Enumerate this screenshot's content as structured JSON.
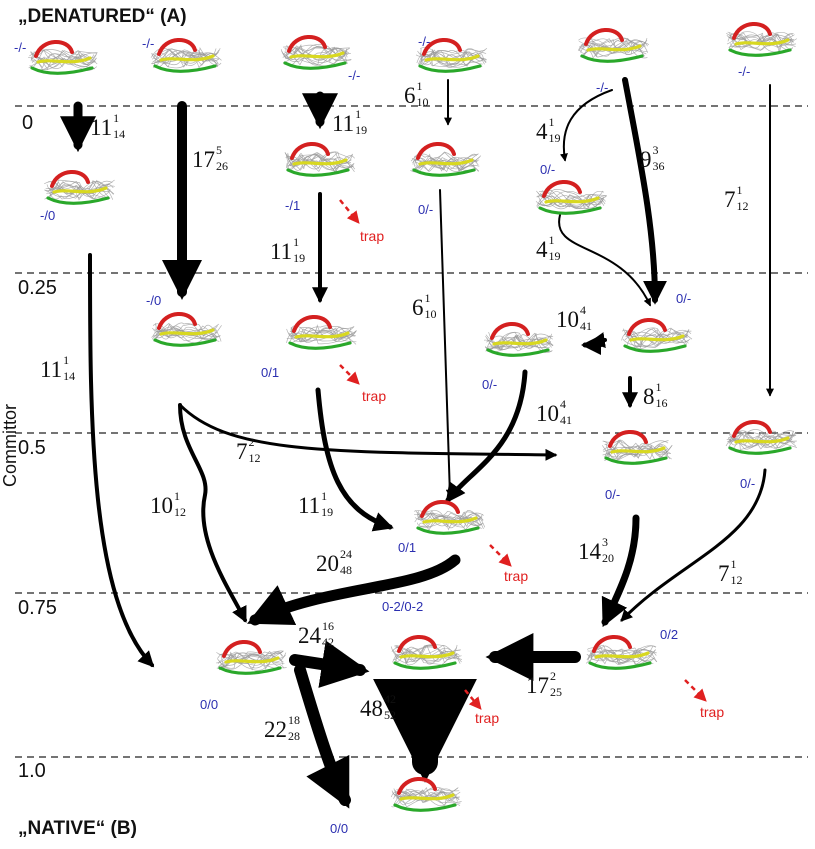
{
  "labels": {
    "denatured": "„DENATURED“ (A)",
    "native": "„NATIVE“ (B)",
    "committor": "Committor"
  },
  "committor_levels": [
    "0",
    "0.25",
    "0.5",
    "0.75",
    "1.0"
  ],
  "states": [
    {
      "id": "d1",
      "label": "-/-"
    },
    {
      "id": "d2",
      "label": "-/-"
    },
    {
      "id": "d3",
      "label": "-/-"
    },
    {
      "id": "d4",
      "label": "-/-"
    },
    {
      "id": "d5",
      "label": "-/-"
    },
    {
      "id": "d6",
      "label": "-/-"
    },
    {
      "id": "a1",
      "label": "-/0"
    },
    {
      "id": "a3",
      "label": "-/1"
    },
    {
      "id": "a4",
      "label": "0/-"
    },
    {
      "id": "a5",
      "label": "0/-"
    },
    {
      "id": "b2",
      "label": "-/0"
    },
    {
      "id": "b3",
      "label": "0/1"
    },
    {
      "id": "b4",
      "label": "0/-"
    },
    {
      "id": "b5",
      "label": "0/-"
    },
    {
      "id": "c5",
      "label": "0/-"
    },
    {
      "id": "c6",
      "label": "0/-"
    },
    {
      "id": "m1",
      "label": "0/1"
    },
    {
      "id": "n1",
      "label": "0/0"
    },
    {
      "id": "n2",
      "label": "0-2/0-2"
    },
    {
      "id": "n3",
      "label": "0/2"
    },
    {
      "id": "nat",
      "label": "0/0"
    }
  ],
  "rates": [
    {
      "id": "r1",
      "main": "11",
      "sup": "1",
      "sub": "14"
    },
    {
      "id": "r2",
      "main": "17",
      "sup": "5",
      "sub": "26"
    },
    {
      "id": "r3",
      "main": "11",
      "sup": "1",
      "sub": "19"
    },
    {
      "id": "r4",
      "main": "6",
      "sup": "1",
      "sub": "10"
    },
    {
      "id": "r5",
      "main": "4",
      "sup": "1",
      "sub": "19"
    },
    {
      "id": "r6",
      "main": "9",
      "sup": "3",
      "sub": "36"
    },
    {
      "id": "r7",
      "main": "7",
      "sup": "1",
      "sub": "12"
    },
    {
      "id": "r8",
      "main": "4",
      "sup": "1",
      "sub": "19"
    },
    {
      "id": "r9",
      "main": "11",
      "sup": "1",
      "sub": "19"
    },
    {
      "id": "r10",
      "main": "6",
      "sup": "1",
      "sub": "10"
    },
    {
      "id": "r11",
      "main": "10",
      "sup": "4",
      "sub": "41"
    },
    {
      "id": "r12",
      "main": "11",
      "sup": "1",
      "sub": "14"
    },
    {
      "id": "r13",
      "main": "8",
      "sup": "1",
      "sub": "16"
    },
    {
      "id": "r14",
      "main": "10",
      "sup": "4",
      "sub": "41"
    },
    {
      "id": "r15",
      "main": "7",
      "sup": "2",
      "sub": "12"
    },
    {
      "id": "r16",
      "main": "10",
      "sup": "1",
      "sub": "12"
    },
    {
      "id": "r17",
      "main": "11",
      "sup": "1",
      "sub": "19"
    },
    {
      "id": "r18",
      "main": "14",
      "sup": "3",
      "sub": "20"
    },
    {
      "id": "r19",
      "main": "20",
      "sup": "24",
      "sub": "48"
    },
    {
      "id": "r20",
      "main": "7",
      "sup": "1",
      "sub": "12"
    },
    {
      "id": "r21",
      "main": "24",
      "sup": "16",
      "sub": "42"
    },
    {
      "id": "r22",
      "main": "17",
      "sup": "2",
      "sub": "25"
    },
    {
      "id": "r23",
      "main": "48",
      "sup": "42",
      "sub": "52"
    },
    {
      "id": "r24",
      "main": "22",
      "sup": "18",
      "sub": "28"
    }
  ],
  "trap_label": "trap",
  "colors": {
    "helix": "#d42020",
    "strand": "#d8d820",
    "coil": "#2aa82a",
    "ensemble": "#9a9a9a",
    "state_text": "#2b2fb0",
    "trap": "#e02020"
  }
}
